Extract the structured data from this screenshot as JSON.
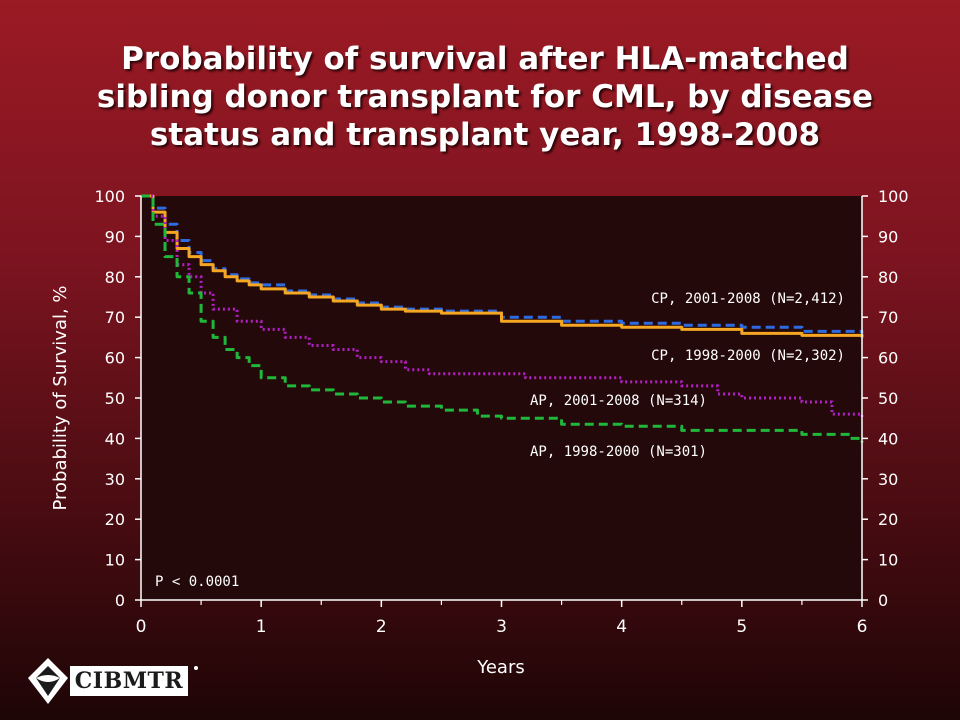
{
  "title_lines": [
    "Probability of survival after HLA-matched",
    "sibling donor transplant for CML, by disease",
    "status and transplant year, 1998-2008"
  ],
  "logo": {
    "text": "CIBMTR"
  },
  "colors": {
    "plot_bg": "#24090a",
    "axis_text": "#ffffff",
    "cp_2001_2008": "#2e6be0",
    "cp_1998_2000": "#f5a623",
    "ap_2001_2008": "#b21fc4",
    "ap_1998_2000": "#1fb83a"
  },
  "chart_data": {
    "type": "line",
    "title": "Probability of survival after HLA-matched sibling donor transplant for CML, by disease status and transplant year, 1998-2008",
    "xlabel": "Years",
    "ylabel": "Probability of Survival, %",
    "xlim": [
      0,
      6
    ],
    "ylim": [
      0,
      100
    ],
    "xticks": [
      0,
      1,
      2,
      3,
      4,
      5,
      6
    ],
    "yticks": [
      0,
      10,
      20,
      30,
      40,
      50,
      60,
      70,
      80,
      90,
      100
    ],
    "annotation": "P < 0.0001",
    "series": [
      {
        "name": "CP, 2001-2008 (N=2,412)",
        "style": "dashed",
        "color": "#2e6be0",
        "x": [
          0,
          0.1,
          0.2,
          0.3,
          0.4,
          0.5,
          0.6,
          0.7,
          0.8,
          0.9,
          1.0,
          1.2,
          1.4,
          1.6,
          1.8,
          2.0,
          2.2,
          2.5,
          3.0,
          3.5,
          4.0,
          4.5,
          5.0,
          5.5,
          6.0
        ],
        "y": [
          100,
          97,
          93,
          89,
          86,
          84,
          82,
          80.5,
          79.5,
          78.5,
          78,
          76.5,
          75.5,
          74.5,
          73.5,
          72.5,
          72,
          71.5,
          70,
          69,
          68.5,
          68,
          67.5,
          66.5,
          66
        ]
      },
      {
        "name": "CP, 1998-2000 (N=2,302)",
        "style": "solid",
        "color": "#f5a623",
        "x": [
          0,
          0.1,
          0.2,
          0.3,
          0.4,
          0.5,
          0.6,
          0.7,
          0.8,
          0.9,
          1.0,
          1.2,
          1.4,
          1.6,
          1.8,
          2.0,
          2.2,
          2.5,
          3.0,
          3.5,
          4.0,
          4.5,
          5.0,
          5.5,
          6.0
        ],
        "y": [
          100,
          96,
          91,
          87,
          85,
          83,
          81.5,
          80,
          79,
          78,
          77,
          76,
          75,
          74,
          73,
          72,
          71.5,
          71,
          69,
          68,
          67.5,
          67,
          66,
          65.5,
          65
        ]
      },
      {
        "name": "AP, 2001-2008 (N=314)",
        "style": "dotted",
        "color": "#b21fc4",
        "x": [
          0,
          0.1,
          0.2,
          0.3,
          0.4,
          0.5,
          0.6,
          0.8,
          1.0,
          1.2,
          1.4,
          1.6,
          1.8,
          2.0,
          2.2,
          2.4,
          2.6,
          3.0,
          3.2,
          3.5,
          4.0,
          4.5,
          4.8,
          5.0,
          5.5,
          5.75,
          6.0
        ],
        "y": [
          100,
          95,
          89,
          83,
          80,
          76,
          72,
          69,
          67,
          65,
          63,
          62,
          60,
          59,
          57,
          56,
          56,
          56,
          55,
          55,
          54,
          53,
          51,
          50,
          49,
          46,
          45
        ]
      },
      {
        "name": "AP, 1998-2000 (N=301)",
        "style": "dashed",
        "color": "#1fb83a",
        "x": [
          0,
          0.1,
          0.2,
          0.3,
          0.4,
          0.5,
          0.6,
          0.7,
          0.8,
          0.9,
          1.0,
          1.2,
          1.4,
          1.6,
          1.8,
          2.0,
          2.2,
          2.5,
          2.8,
          3.0,
          3.5,
          4.0,
          4.5,
          5.0,
          5.5,
          5.9,
          6.0
        ],
        "y": [
          100,
          93,
          85,
          80,
          76,
          69,
          65,
          62,
          60,
          58,
          55,
          53,
          52,
          51,
          50,
          49,
          48,
          47,
          45.5,
          45,
          43.5,
          43,
          42,
          42,
          41,
          40,
          39
        ]
      }
    ],
    "series_labels": [
      "CP, 2001-2008 (N=2,412)",
      "CP, 1998-2000 (N=2,302)",
      "AP, 2001-2008 (N=314)",
      "AP, 1998-2000 (N=301)"
    ]
  }
}
